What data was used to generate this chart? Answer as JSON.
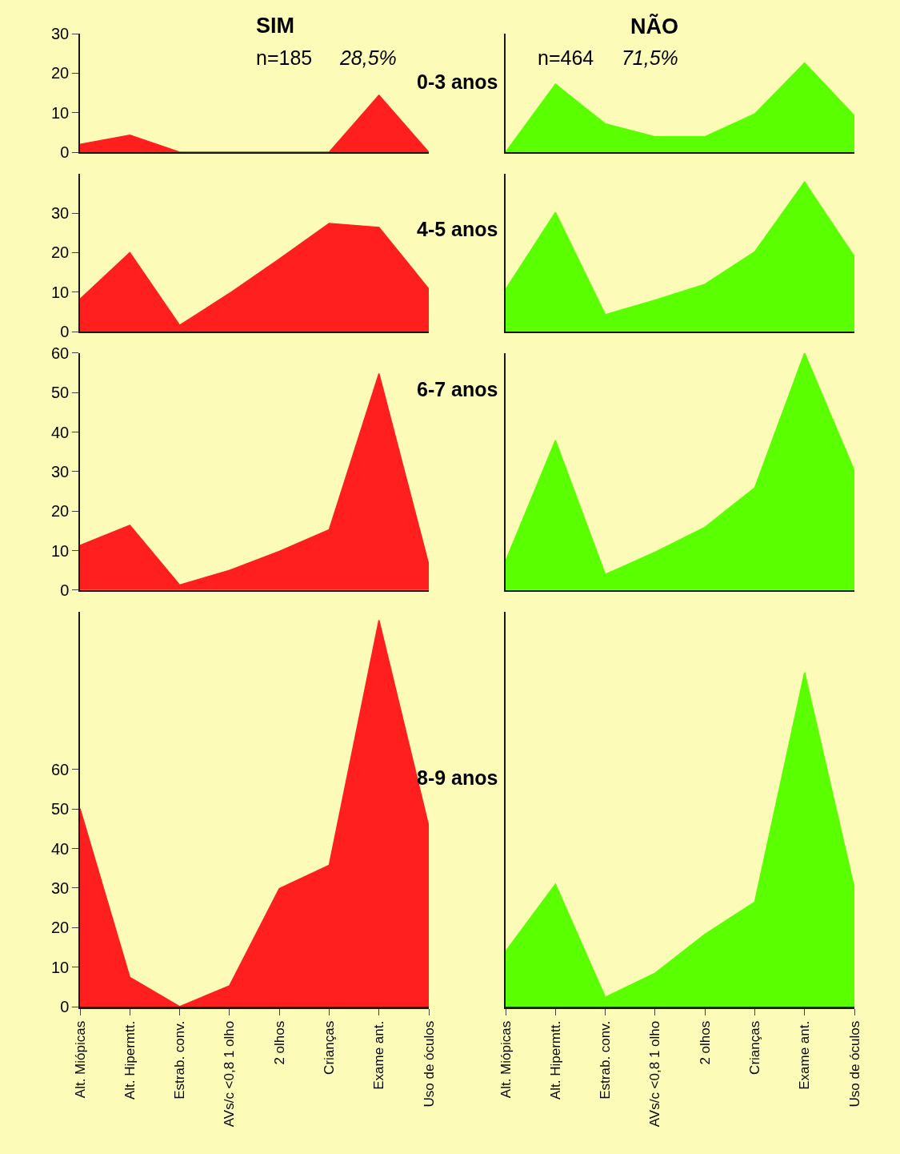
{
  "chart_data": [
    {
      "type": "area",
      "title": "SIM",
      "subtitle": "n=185 28,5%",
      "annotations": [
        "0-3 anos"
      ],
      "categories": [
        "Alt. Miópicas",
        "Alt. Hipermtt.",
        "Estrab. conv.",
        "AVs/c <0,8 1 olho",
        "2 olhos",
        "Crianças",
        "Exame ant.",
        "Uso de óculos"
      ],
      "values": [
        2,
        4.3,
        0,
        0,
        0,
        0,
        14.4,
        0
      ],
      "color": "#ff1f1f",
      "ylim": [
        0,
        30
      ],
      "yticks": [
        0,
        10,
        20,
        30
      ],
      "tick_labels": "y"
    },
    {
      "type": "area",
      "title": "NÃO",
      "subtitle": "n=464 71,5%",
      "categories": [
        "Alt. Miópicas",
        "Alt. Hipermtt.",
        "Estrab. conv.",
        "AVs/c <0,8 1 olho",
        "2 olhos",
        "Crianças",
        "Exame ant.",
        "Uso de óculos"
      ],
      "values": [
        0,
        17.2,
        7.2,
        3.9,
        3.9,
        9.7,
        22.6,
        9.2
      ],
      "color": "#5aff00",
      "ylim": [
        0,
        30
      ],
      "yticks": [
        0,
        10,
        20,
        30
      ],
      "tick_labels": false
    },
    {
      "type": "area",
      "annotations": [
        "4-5 anos"
      ],
      "categories": [
        "Alt. Miópicas",
        "Alt. Hipermtt.",
        "Estrab. conv.",
        "AVs/c <0,8 1 olho",
        "2 olhos",
        "Crianças",
        "Exame ant.",
        "Uso de óculos"
      ],
      "values": [
        8.2,
        20,
        1.6,
        9.7,
        18.4,
        27.4,
        26.4,
        10.8
      ],
      "color": "#ff1f1f",
      "ylim": [
        0,
        40
      ],
      "yticks": [
        0,
        10,
        20,
        30
      ],
      "tick_labels": "y"
    },
    {
      "type": "area",
      "categories": [
        "Alt. Miópicas",
        "Alt. Hipermtt.",
        "Estrab. conv.",
        "AVs/c <0,8 1 olho",
        "2 olhos",
        "Crianças",
        "Exame ant.",
        "Uso de óculos"
      ],
      "values": [
        10.7,
        30.2,
        4.3,
        8,
        12,
        20.2,
        37.9,
        19
      ],
      "color": "#5aff00",
      "ylim": [
        0,
        40
      ],
      "yticks": [
        0,
        10,
        20,
        30
      ],
      "tick_labels": false
    },
    {
      "type": "area",
      "annotations": [
        "6-7 anos"
      ],
      "categories": [
        "Alt. Miópicas",
        "Alt. Hipermtt.",
        "Estrab. conv.",
        "AVs/c <0,8 1 olho",
        "2 olhos",
        "Crianças",
        "Exame ant.",
        "Uso de óculos"
      ],
      "values": [
        11.3,
        16.4,
        1.3,
        5,
        9.8,
        15.3,
        54.8,
        6.4
      ],
      "color": "#ff1f1f",
      "ylim": [
        0,
        60
      ],
      "yticks": [
        0,
        10,
        20,
        30,
        40,
        50,
        60
      ],
      "tick_labels": "y"
    },
    {
      "type": "area",
      "categories": [
        "Alt. Miópicas",
        "Alt. Hipermtt.",
        "Estrab. conv.",
        "AVs/c <0,8 1 olho",
        "2 olhos",
        "Crianças",
        "Exame ant.",
        "Uso de óculos"
      ],
      "values": [
        7.4,
        37.9,
        4,
        9.6,
        15.9,
        25.9,
        60,
        30.2
      ],
      "color": "#5aff00",
      "ylim": [
        0,
        60
      ],
      "yticks": [
        0,
        10,
        20,
        30,
        40,
        50,
        60
      ],
      "tick_labels": false
    },
    {
      "type": "area",
      "annotations": [
        "8-9 anos"
      ],
      "categories": [
        "Alt. Miópicas",
        "Alt. Hipermtt.",
        "Estrab. conv.",
        "AVs/c <0,8 1 olho",
        "2 olhos",
        "Crianças",
        "Exame ant.",
        "Uso de óculos"
      ],
      "values": [
        50.1,
        7.4,
        0,
        5.3,
        29.9,
        35.8,
        97.8,
        45.6
      ],
      "color": "#ff1f1f",
      "ylim": [
        0,
        100
      ],
      "yticks": [
        0,
        10,
        20,
        30,
        40,
        50,
        60
      ]
    },
    {
      "type": "area",
      "categories": [
        "Alt. Miópicas",
        "Alt. Hipermtt.",
        "Estrab. conv.",
        "AVs/c <0,8 1 olho",
        "2 olhos",
        "Crianças",
        "Exame ant.",
        "Uso de óculos"
      ],
      "values": [
        14,
        31,
        2.4,
        8.5,
        18.3,
        26.5,
        84.6,
        30
      ],
      "color": "#5aff00",
      "ylim": [
        0,
        100
      ],
      "yticks": [
        0,
        10,
        20,
        30,
        40,
        50,
        60
      ],
      "tick_labels": "x"
    }
  ]
}
